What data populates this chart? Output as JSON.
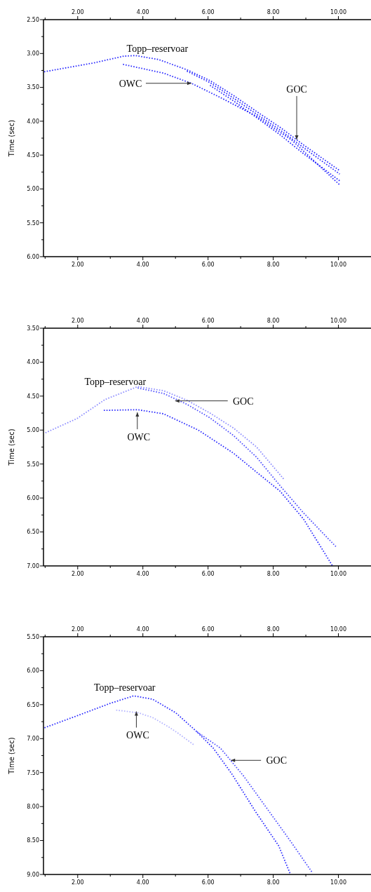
{
  "chart_data": [
    {
      "type": "line",
      "ylabel": "Time (sec)",
      "line_style": "dotted",
      "xlim": [
        0.95,
        11
      ],
      "ylim": [
        6,
        2.5
      ],
      "xticks": [
        {
          "value": 1,
          "label": null
        },
        {
          "value": 2,
          "label": "2.00"
        },
        {
          "value": 3,
          "label": null
        },
        {
          "value": 4,
          "label": "4.00"
        },
        {
          "value": 5,
          "label": null
        },
        {
          "value": 6,
          "label": "6.00"
        },
        {
          "value": 7,
          "label": null
        },
        {
          "value": 8,
          "label": "8.00"
        },
        {
          "value": 9,
          "label": null
        },
        {
          "value": 10,
          "label": "10.00"
        }
      ],
      "x2lim": [
        0.95,
        11
      ],
      "x2ticks": [
        {
          "value": 1,
          "label": null
        },
        {
          "value": 2,
          "label": "2.00"
        },
        {
          "value": 3,
          "label": null
        },
        {
          "value": 4,
          "label": "4.00"
        },
        {
          "value": 5,
          "label": null
        },
        {
          "value": 6,
          "label": "6.00"
        },
        {
          "value": 7,
          "label": null
        },
        {
          "value": 8,
          "label": "8.00"
        },
        {
          "value": 9,
          "label": null
        },
        {
          "value": 10,
          "label": "10.00"
        }
      ],
      "yticks": [
        {
          "value": 2.5,
          "label": "2.50"
        },
        {
          "value": 2.75,
          "label": null
        },
        {
          "value": 3,
          "label": "3.00"
        },
        {
          "value": 3.25,
          "label": null
        },
        {
          "value": 3.5,
          "label": "3.50"
        },
        {
          "value": 3.75,
          "label": null
        },
        {
          "value": 4,
          "label": "4.00"
        },
        {
          "value": 4.25,
          "label": null
        },
        {
          "value": 4.5,
          "label": "4.50"
        },
        {
          "value": 4.75,
          "label": null
        },
        {
          "value": 5,
          "label": "5.00"
        },
        {
          "value": 5.25,
          "label": null
        },
        {
          "value": 5.5,
          "label": "5.50"
        },
        {
          "value": 5.75,
          "label": null
        },
        {
          "value": 6,
          "label": "6.00"
        }
      ],
      "series": [
        {
          "color": "#2a2aff",
          "x": [
            0.97,
            2.48,
            3.41,
            3.77,
            4.49,
            5.35,
            6.06,
            6.78,
            7.5,
            8.21,
            8.93,
            10.04
          ],
          "values": [
            3.27,
            3.14,
            3.04,
            3.03,
            3.09,
            3.24,
            3.4,
            3.62,
            3.86,
            4.09,
            4.35,
            4.73
          ]
        },
        {
          "color": "#2a2aff",
          "x": [
            5.35,
            6.06,
            6.78,
            7.5,
            8.21,
            8.93,
            10.04
          ],
          "values": [
            3.26,
            3.43,
            3.66,
            3.9,
            4.13,
            4.39,
            4.78
          ]
        },
        {
          "color": "#2a2aff",
          "x": [
            6.06,
            6.78,
            7.5,
            8.21,
            8.93,
            10.04
          ],
          "values": [
            3.47,
            3.7,
            3.95,
            4.2,
            4.48,
            4.88
          ]
        },
        {
          "color": "#2a2aff",
          "x": [
            3.39,
            4.63,
            5.49,
            6.42,
            7.5,
            8.57,
            10.04
          ],
          "values": [
            3.16,
            3.29,
            3.44,
            3.66,
            3.93,
            4.28,
            4.94
          ]
        }
      ],
      "annotations": [
        {
          "text": "Topp–reservoar",
          "x": 3.8,
          "y": 3.03
        },
        {
          "text": "OWC",
          "x": 5.49,
          "y": 3.44
        },
        {
          "text": "GOC",
          "x": 8.72,
          "y": 4.27
        }
      ]
    },
    {
      "type": "line",
      "ylabel": "Time (sec)",
      "line_style": "dotted",
      "xlim": [
        0.95,
        11
      ],
      "ylim": [
        7,
        3.5
      ],
      "xticks": [
        {
          "value": 1,
          "label": null
        },
        {
          "value": 2,
          "label": "2.00"
        },
        {
          "value": 3,
          "label": null
        },
        {
          "value": 4,
          "label": "4.00"
        },
        {
          "value": 5,
          "label": null
        },
        {
          "value": 6,
          "label": "6.00"
        },
        {
          "value": 7,
          "label": null
        },
        {
          "value": 8,
          "label": "8.00"
        },
        {
          "value": 9,
          "label": null
        },
        {
          "value": 10,
          "label": "10.00"
        }
      ],
      "x2lim": [
        0.95,
        11
      ],
      "x2ticks": [
        {
          "value": 1,
          "label": null
        },
        {
          "value": 2,
          "label": "2.00"
        },
        {
          "value": 3,
          "label": null
        },
        {
          "value": 4,
          "label": "4.00"
        },
        {
          "value": 5,
          "label": null
        },
        {
          "value": 6,
          "label": "6.00"
        },
        {
          "value": 7,
          "label": null
        },
        {
          "value": 8,
          "label": "8.00"
        },
        {
          "value": 9,
          "label": null
        },
        {
          "value": 10,
          "label": "10.00"
        }
      ],
      "yticks": [
        {
          "value": 3.5,
          "label": "3.50"
        },
        {
          "value": 3.75,
          "label": null
        },
        {
          "value": 4,
          "label": "4.00"
        },
        {
          "value": 4.25,
          "label": null
        },
        {
          "value": 4.5,
          "label": "4.50"
        },
        {
          "value": 4.75,
          "label": null
        },
        {
          "value": 5,
          "label": "5.00"
        },
        {
          "value": 5.25,
          "label": null
        },
        {
          "value": 5.5,
          "label": "5.50"
        },
        {
          "value": 5.75,
          "label": null
        },
        {
          "value": 6,
          "label": "6.00"
        },
        {
          "value": 6.25,
          "label": null
        },
        {
          "value": 6.5,
          "label": "6.50"
        },
        {
          "value": 6.75,
          "label": null
        },
        {
          "value": 7,
          "label": "7.00"
        }
      ],
      "series": [
        {
          "color": "#8c8cff",
          "x": [
            1.01,
            1.98,
            2.84,
            3.84,
            4.63,
            5.35,
            6.06,
            6.78,
            7.49,
            8.32
          ],
          "values": [
            5.04,
            4.83,
            4.55,
            4.36,
            4.42,
            4.56,
            4.75,
            4.97,
            5.25,
            5.72
          ]
        },
        {
          "color": "#5050ff",
          "x": [
            3.84,
            4.63,
            5.35,
            6.06,
            6.78,
            7.49,
            8.21,
            8.93,
            9.93
          ],
          "values": [
            4.38,
            4.46,
            4.62,
            4.82,
            5.08,
            5.4,
            5.82,
            6.22,
            6.72
          ]
        },
        {
          "color": "#2a2aff",
          "x": [
            2.8,
            3.84,
            4.63,
            5.7,
            6.78,
            7.49,
            8.21,
            8.93,
            9.82
          ],
          "values": [
            4.71,
            4.7,
            4.76,
            5,
            5.34,
            5.62,
            5.9,
            6.31,
            7
          ]
        }
      ],
      "annotations": [
        {
          "text": "Topp–reservoar",
          "x": 3.84,
          "y": 4.36
        },
        {
          "text": "GOC",
          "x": 4.99,
          "y": 4.57
        },
        {
          "text": "OWC",
          "x": 3.83,
          "y": 4.74
        }
      ]
    },
    {
      "type": "line",
      "ylabel": "Time (sec)",
      "line_style": "dotted",
      "xlim": [
        0.95,
        11
      ],
      "ylim": [
        9,
        5.5
      ],
      "xticks": [
        {
          "value": 1,
          "label": null
        },
        {
          "value": 2,
          "label": "2.00"
        },
        {
          "value": 3,
          "label": null
        },
        {
          "value": 4,
          "label": "4.00"
        },
        {
          "value": 5,
          "label": null
        },
        {
          "value": 6,
          "label": "6.00"
        },
        {
          "value": 7,
          "label": null
        },
        {
          "value": 8,
          "label": "8.00"
        },
        {
          "value": 9,
          "label": null
        },
        {
          "value": 10,
          "label": "10.00"
        }
      ],
      "x2lim": [
        0.95,
        11
      ],
      "x2ticks": [
        {
          "value": 1,
          "label": null
        },
        {
          "value": 2,
          "label": "2.00"
        },
        {
          "value": 3,
          "label": null
        },
        {
          "value": 4,
          "label": "4.00"
        },
        {
          "value": 5,
          "label": null
        },
        {
          "value": 6,
          "label": "6.00"
        },
        {
          "value": 7,
          "label": null
        },
        {
          "value": 8,
          "label": "8.00"
        },
        {
          "value": 9,
          "label": null
        },
        {
          "value": 10,
          "label": "10.00"
        }
      ],
      "yticks": [
        {
          "value": 5.5,
          "label": "5.50"
        },
        {
          "value": 5.75,
          "label": null
        },
        {
          "value": 6,
          "label": "6.00"
        },
        {
          "value": 6.25,
          "label": null
        },
        {
          "value": 6.5,
          "label": "6.50"
        },
        {
          "value": 6.75,
          "label": null
        },
        {
          "value": 7,
          "label": "7.00"
        },
        {
          "value": 7.25,
          "label": null
        },
        {
          "value": 7.5,
          "label": "7.50"
        },
        {
          "value": 7.75,
          "label": null
        },
        {
          "value": 8,
          "label": "8.00"
        },
        {
          "value": 8.25,
          "label": null
        },
        {
          "value": 8.5,
          "label": "8.50"
        },
        {
          "value": 8.75,
          "label": null
        },
        {
          "value": 9,
          "label": "9.00"
        }
      ],
      "series": [
        {
          "color": "#2a2aff",
          "x": [
            0.98,
            2,
            3,
            3.72,
            4.3,
            5.01,
            5.66,
            6.16,
            6.73,
            7.45,
            8.17,
            8.53
          ],
          "values": [
            6.84,
            6.66,
            6.48,
            6.37,
            6.42,
            6.62,
            6.9,
            7.14,
            7.52,
            8.07,
            8.58,
            9
          ]
        },
        {
          "color": "#5050ff",
          "x": [
            5.66,
            6.38,
            7.09,
            7.81,
            8.53,
            9.21
          ],
          "values": [
            6.9,
            7.14,
            7.55,
            8.03,
            8.51,
            8.98
          ]
        },
        {
          "color": "#b4b4ff",
          "x": [
            3.18,
            3.87,
            4.3,
            4.8,
            5.08,
            5.59
          ],
          "values": [
            6.58,
            6.62,
            6.69,
            6.83,
            6.92,
            7.1
          ]
        }
      ],
      "annotations": [
        {
          "text": "Topp–reservoar",
          "x": 3.72,
          "y": 6.37
        },
        {
          "text": "OWC",
          "x": 3.8,
          "y": 6.6
        },
        {
          "text": "GOC",
          "x": 6.7,
          "y": 7.32
        }
      ]
    }
  ]
}
